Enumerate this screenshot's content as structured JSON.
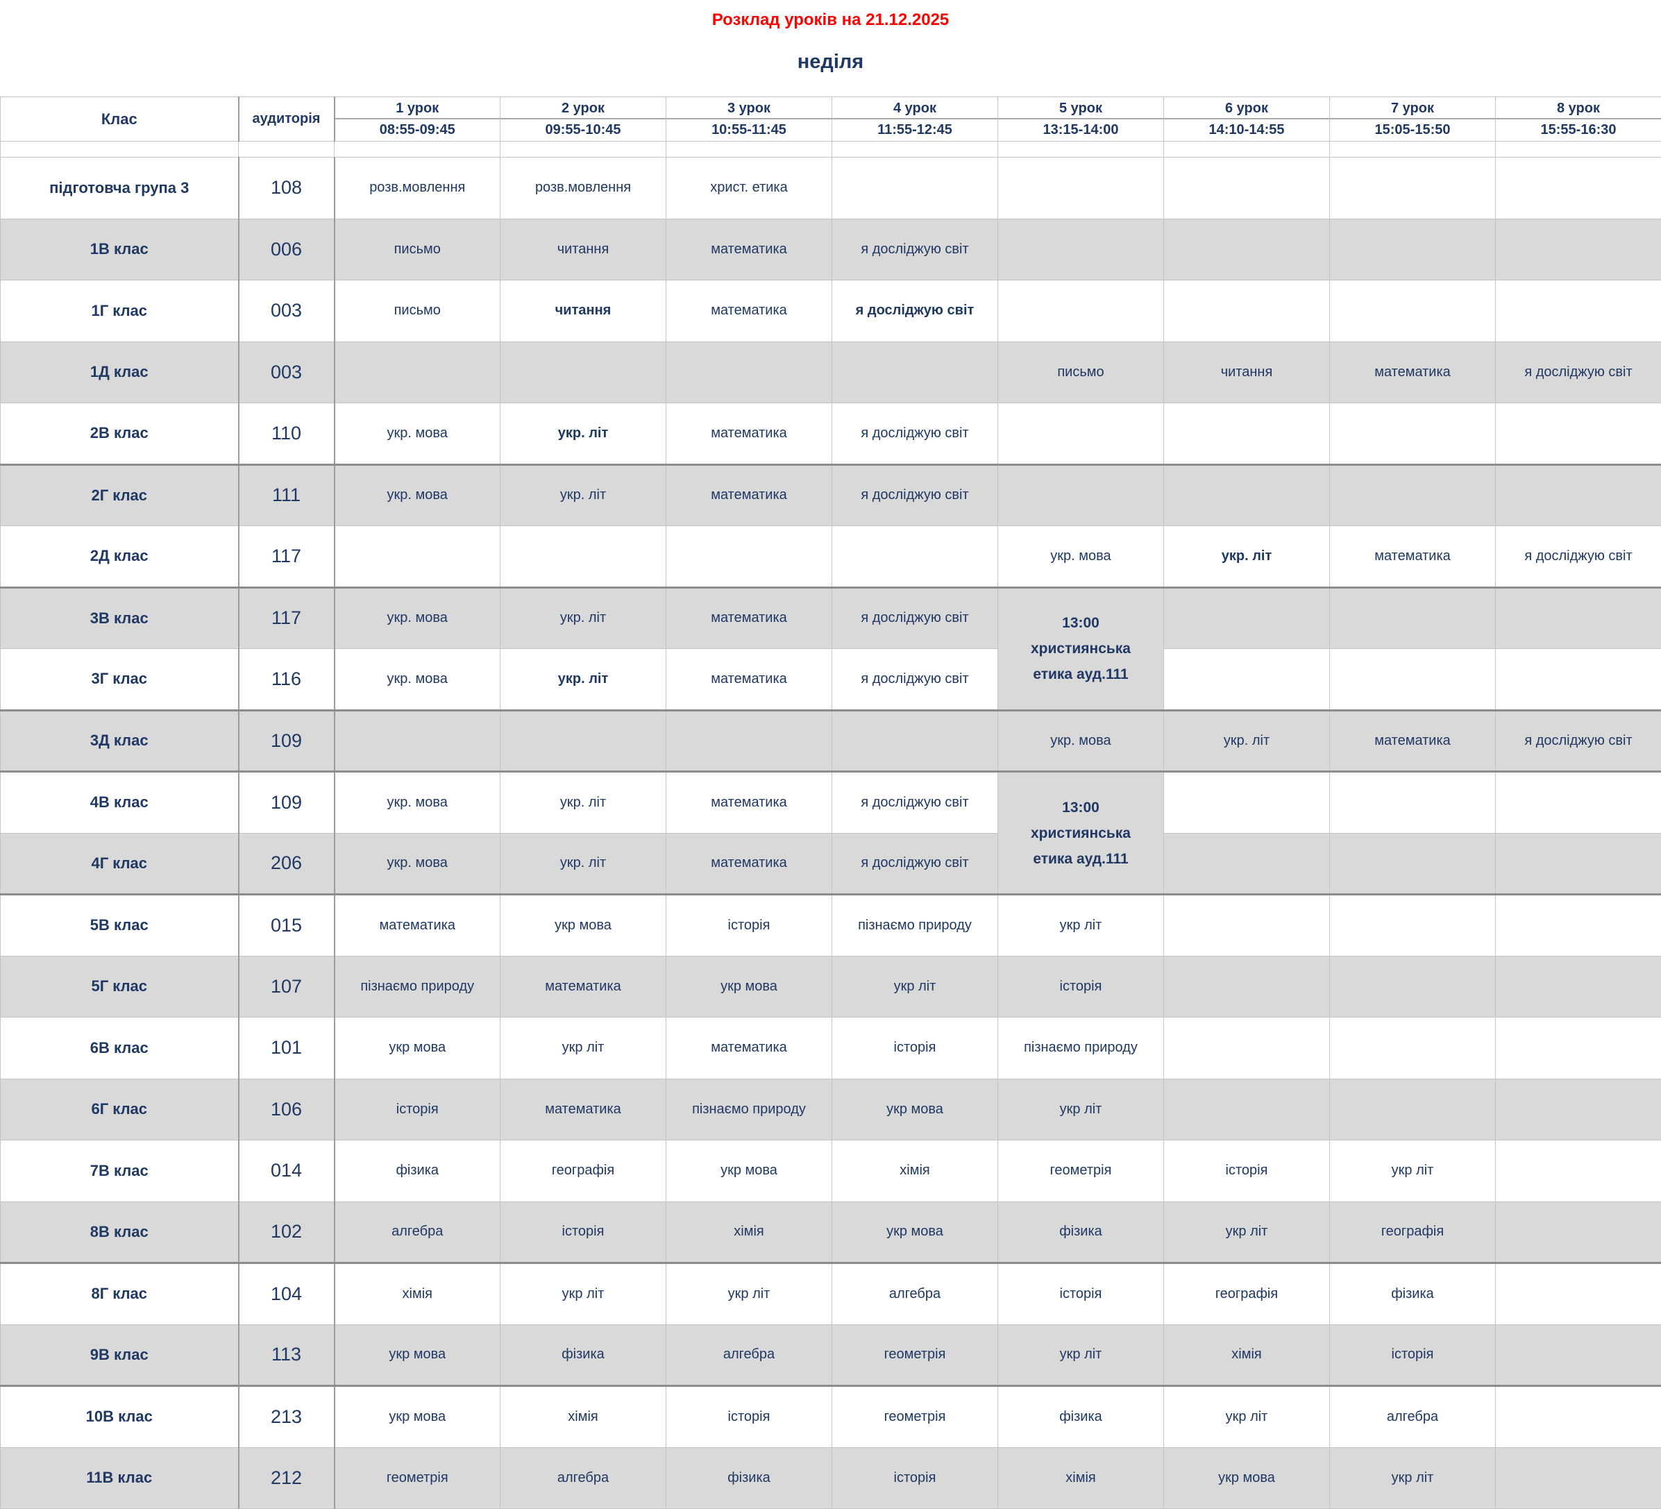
{
  "title": "Розклад уроків на 21.12.2025",
  "subtitle": "неділя",
  "colors": {
    "title_red": "#FF0000",
    "text_navy": "#1F3864",
    "row_gray": "#D9D9D9",
    "row_white": "#FFFFFF",
    "border_light": "#C4C4C4",
    "border_dark": "#8C8C8C"
  },
  "table": {
    "class_header": "Клас",
    "room_header": "аудиторія",
    "lesson_headers": [
      {
        "label": "1 урок",
        "time": "08:55-09:45"
      },
      {
        "label": "2 урок",
        "time": "09:55-10:45"
      },
      {
        "label": "3 урок",
        "time": "10:55-11:45"
      },
      {
        "label": "4 урок",
        "time": "11:55-12:45"
      },
      {
        "label": "5 урок",
        "time": "13:15-14:00"
      },
      {
        "label": "6 урок",
        "time": "14:10-14:55"
      },
      {
        "label": "7 урок",
        "time": "15:05-15:50"
      },
      {
        "label": "8 урок",
        "time": "15:55-16:30"
      }
    ],
    "rows": [
      {
        "name": "підготовча група 3",
        "room": "108",
        "shade": "white",
        "lessons": [
          "розв.мовлення",
          "розв.мовлення",
          "христ. етика",
          "",
          "",
          "",
          "",
          ""
        ]
      },
      {
        "name": "1В клас",
        "room": "006",
        "shade": "gray",
        "lessons": [
          "письмо",
          "читання",
          "математика",
          "я досліджую світ",
          "",
          "",
          "",
          ""
        ]
      },
      {
        "name": "1Г клас",
        "room": "003",
        "shade": "white",
        "bold": [
          1,
          3
        ],
        "lessons": [
          "письмо",
          "читання",
          "математика",
          "я досліджую світ",
          "",
          "",
          "",
          ""
        ]
      },
      {
        "name": "1Д клас",
        "room": "003",
        "shade": "gray",
        "lessons": [
          "",
          "",
          "",
          "",
          "письмо",
          "читання",
          "математика",
          "я досліджую світ"
        ]
      },
      {
        "name": "2В клас",
        "room": "110",
        "shade": "white",
        "bold": [
          1
        ],
        "lessons": [
          "укр. мова",
          "укр. літ",
          "математика",
          "я досліджую світ",
          "",
          "",
          "",
          ""
        ]
      },
      {
        "name": "2Г клас",
        "room": "111",
        "shade": "gray",
        "thick_top": true,
        "lessons": [
          "укр. мова",
          "укр. літ",
          "математика",
          "я досліджую світ",
          "",
          "",
          "",
          ""
        ]
      },
      {
        "name": "2Д клас",
        "room": "117",
        "shade": "white",
        "bold": [
          5
        ],
        "lessons": [
          "",
          "",
          "",
          "",
          "укр. мова",
          "укр. літ",
          "математика",
          "я досліджую світ"
        ]
      },
      {
        "name": "3В клас",
        "room": "117",
        "shade": "gray",
        "thick_top": true,
        "merge": {
          "col": 4,
          "rowspan": 2,
          "lines": [
            "13:00",
            "християнська",
            "етика ауд.111"
          ]
        },
        "lessons": [
          "укр. мова",
          "укр. літ",
          "математика",
          "я досліджую світ",
          null,
          "",
          "",
          ""
        ]
      },
      {
        "name": "3Г клас",
        "room": "116",
        "shade": "white",
        "bold": [
          1
        ],
        "merge_skip": [
          4
        ],
        "lessons": [
          "укр. мова",
          "укр. літ",
          "математика",
          "я досліджую світ",
          null,
          "",
          "",
          ""
        ]
      },
      {
        "name": "3Д клас",
        "room": "109",
        "shade": "gray",
        "thick_top": true,
        "lessons": [
          "",
          "",
          "",
          "",
          "укр. мова",
          "укр. літ",
          "математика",
          "я досліджую світ"
        ]
      },
      {
        "name": "4В клас",
        "room": "109",
        "shade": "white",
        "thick_top": true,
        "merge": {
          "col": 4,
          "rowspan": 2,
          "lines": [
            "13:00",
            "християнська",
            "етика ауд.111"
          ]
        },
        "lessons": [
          "укр. мова",
          "укр. літ",
          "математика",
          "я досліджую світ",
          null,
          "",
          "",
          ""
        ]
      },
      {
        "name": "4Г клас",
        "room": "206",
        "shade": "gray",
        "merge_skip": [
          4
        ],
        "lessons": [
          "укр. мова",
          "укр. літ",
          "математика",
          "я досліджую світ",
          null,
          "",
          "",
          ""
        ]
      },
      {
        "name": "5В клас",
        "room": "015",
        "shade": "white",
        "thick_top": true,
        "lessons": [
          "математика",
          "укр мова",
          "історія",
          "пізнаємо природу",
          "укр літ",
          "",
          "",
          ""
        ]
      },
      {
        "name": "5Г клас",
        "room": "107",
        "shade": "gray",
        "lessons": [
          "пізнаємо природу",
          "математика",
          "укр мова",
          "укр літ",
          "історія",
          "",
          "",
          ""
        ]
      },
      {
        "name": "6В клас",
        "room": "101",
        "shade": "white",
        "lessons": [
          "укр мова",
          "укр літ",
          "математика",
          "історія",
          "пізнаємо природу",
          "",
          "",
          ""
        ]
      },
      {
        "name": "6Г клас",
        "room": "106",
        "shade": "gray",
        "lessons": [
          "історія",
          "математика",
          "пізнаємо природу",
          "укр мова",
          "укр літ",
          "",
          "",
          ""
        ]
      },
      {
        "name": "7В клас",
        "room": "014",
        "shade": "white",
        "lessons": [
          "фізика",
          "географія",
          "укр мова",
          "хімія",
          "геометрія",
          "історія",
          "укр літ",
          ""
        ]
      },
      {
        "name": "8В клас",
        "room": "102",
        "shade": "gray",
        "lessons": [
          "алгебра",
          "історія",
          "хімія",
          "укр мова",
          "фізика",
          "укр літ",
          "географія",
          ""
        ]
      },
      {
        "name": "8Г клас",
        "room": "104",
        "shade": "white",
        "thick_top": true,
        "lessons": [
          "хімія",
          "укр літ",
          "укр літ",
          "алгебра",
          "історія",
          "географія",
          "фізика",
          ""
        ]
      },
      {
        "name": "9В клас",
        "room": "113",
        "shade": "gray",
        "lessons": [
          "укр мова",
          "фізика",
          "алгебра",
          "геометрія",
          "укр літ",
          "хімія",
          "історія",
          ""
        ]
      },
      {
        "name": "10В клас",
        "room": "213",
        "shade": "white",
        "thick_top": true,
        "lessons": [
          "укр мова",
          "хімія",
          "історія",
          "геометрія",
          "фізика",
          "укр літ",
          "алгебра",
          ""
        ]
      },
      {
        "name": "11В клас",
        "room": "212",
        "shade": "gray",
        "lessons": [
          "геометрія",
          "алгебра",
          "фізика",
          "історія",
          "хімія",
          "укр мова",
          "укр літ",
          ""
        ]
      }
    ]
  }
}
